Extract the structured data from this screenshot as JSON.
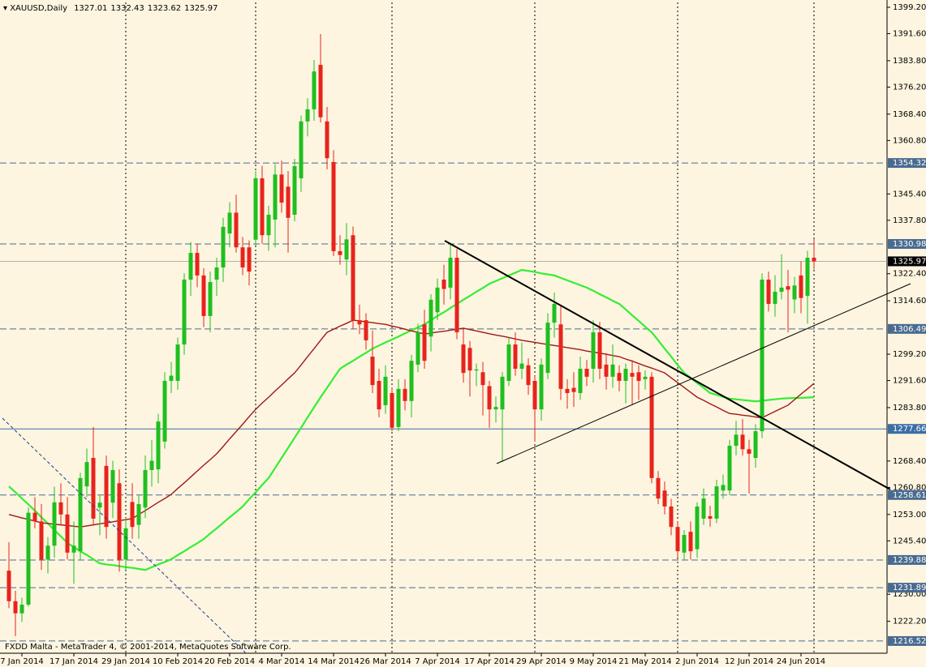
{
  "chart_data": {
    "type": "candlestick",
    "title": "XAUUSD,Daily",
    "footer": "FXDD Malta - MetaTrader 4, © 2001-2014, MetaQuotes Software Corp.",
    "up_color": "#1fbf1f",
    "down_color": "#e8231c",
    "grid": false,
    "ylim": [
      1213.0,
      1400.6
    ],
    "yticks": [
      {
        "value": 1399.2,
        "label": "1399.20"
      },
      {
        "value": 1391.6,
        "label": "1391.60"
      },
      {
        "value": 1383.8,
        "label": "1383.80"
      },
      {
        "value": 1376.2,
        "label": "1376.20"
      },
      {
        "value": 1368.4,
        "label": "1368.40"
      },
      {
        "value": 1360.8,
        "label": "1360.80"
      },
      {
        "value": 1345.4,
        "label": "1345.40"
      },
      {
        "value": 1337.8,
        "label": "1337.80"
      },
      {
        "value": 1322.4,
        "label": "1322.40"
      },
      {
        "value": 1314.6,
        "label": "1314.60"
      },
      {
        "value": 1299.2,
        "label": "1299.20"
      },
      {
        "value": 1291.6,
        "label": "1291.60"
      },
      {
        "value": 1283.8,
        "label": "1283.80"
      },
      {
        "value": 1268.4,
        "label": "1268.40"
      },
      {
        "value": 1260.8,
        "label": "1260.80"
      },
      {
        "value": 1253.0,
        "label": "1253.00"
      },
      {
        "value": 1245.4,
        "label": "1245.40"
      },
      {
        "value": 1230.0,
        "label": "1230.00"
      },
      {
        "value": 1222.2,
        "label": "1222.20"
      }
    ],
    "levels": [
      {
        "value": 1354.32,
        "style": "dashed",
        "color": "#4a6b8f"
      },
      {
        "value": 1330.98,
        "style": "dashed",
        "color": "#4a6b8f"
      },
      {
        "value": 1306.49,
        "style": "dashed",
        "color": "#4a6b8f"
      },
      {
        "value": 1277.66,
        "style": "solid",
        "color": "#3a6ea5"
      },
      {
        "value": 1258.61,
        "style": "dashed",
        "color": "#4a6b8f"
      },
      {
        "value": 1239.88,
        "style": "dashed",
        "color": "#4a6b8f"
      },
      {
        "value": 1231.89,
        "style": "dashed",
        "color": "#4a6b8f"
      },
      {
        "value": 1216.52,
        "style": "dashed",
        "color": "#4a6b8f"
      }
    ],
    "categories": [
      null,
      null,
      "7 Jan 2014",
      null,
      null,
      null,
      null,
      null,
      null,
      null,
      "17 Jan 2014",
      null,
      null,
      null,
      null,
      null,
      null,
      null,
      "29 Jan 2014",
      null,
      null,
      null,
      null,
      null,
      null,
      null,
      "10 Feb 2014",
      null,
      null,
      null,
      null,
      null,
      null,
      null,
      "20 Feb 2014",
      null,
      null,
      null,
      null,
      null,
      null,
      null,
      "4 Mar 2014",
      null,
      null,
      null,
      null,
      null,
      null,
      null,
      "14 Mar 2014",
      null,
      null,
      null,
      null,
      null,
      null,
      null,
      "26 Mar 2014",
      null,
      null,
      null,
      null,
      null,
      null,
      null,
      "7 Apr 2014",
      null,
      null,
      null,
      null,
      null,
      null,
      null,
      "17 Apr 2014",
      null,
      null,
      null,
      null,
      null,
      null,
      null,
      "29 Apr 2014",
      null,
      null,
      null,
      null,
      null,
      null,
      null,
      "9 May 2014",
      null,
      null,
      null,
      null,
      null,
      null,
      null,
      "21 May 2014",
      null,
      null,
      null,
      null,
      null,
      null,
      null,
      "2 Jun 2014",
      null,
      null,
      null,
      null,
      null,
      null,
      null,
      "12 Jun 2014",
      null,
      null,
      null,
      null,
      null,
      null,
      null,
      "24 Jun 2014",
      null,
      null
    ],
    "ohlc": [
      [
        1236.8,
        1245.0,
        1226.0,
        1228.0
      ],
      [
        1228.0,
        1231.0,
        1217.9,
        1224.5
      ],
      [
        1224.5,
        1229.0,
        1222.0,
        1227.0
      ],
      [
        1227.0,
        1255.0,
        1226.5,
        1253.5
      ],
      [
        1253.5,
        1258.0,
        1249.0,
        1251.0
      ],
      [
        1251.0,
        1256.0,
        1237.0,
        1240.0
      ],
      [
        1240.0,
        1246.5,
        1236.0,
        1244.0
      ],
      [
        1244.0,
        1261.0,
        1240.5,
        1256.5
      ],
      [
        1256.5,
        1262.0,
        1250.0,
        1253.0
      ],
      [
        1253.0,
        1258.0,
        1240.0,
        1242.0
      ],
      [
        1242.0,
        1251.0,
        1233.0,
        1244.0
      ],
      [
        1242.4,
        1265.0,
        1240.0,
        1263.5
      ],
      [
        1261.1,
        1272.0,
        1258.0,
        1268.1
      ],
      [
        1269.3,
        1278.2,
        1250.0,
        1251.8
      ],
      [
        1255.0,
        1258.5,
        1247.0,
        1256.4
      ],
      [
        1267.0,
        1270.0,
        1246.0,
        1249.4
      ],
      [
        1256.4,
        1268.5,
        1252.0,
        1265.8
      ],
      [
        1262.0,
        1266.0,
        1236.5,
        1240.0
      ],
      [
        1240.0,
        1252.0,
        1237.0,
        1249.0
      ],
      [
        1256.6,
        1262.0,
        1246.0,
        1249.4
      ],
      [
        1250.0,
        1258.5,
        1246.0,
        1256.0
      ],
      [
        1255.0,
        1270.0,
        1252.0,
        1265.8
      ],
      [
        1265.8,
        1274.5,
        1261.0,
        1268.5
      ],
      [
        1266.0,
        1282.0,
        1262.0,
        1279.8
      ],
      [
        1274.0,
        1294.0,
        1272.0,
        1291.5
      ],
      [
        1291.5,
        1297.0,
        1288.0,
        1293.0
      ],
      [
        1291.5,
        1304.0,
        1289.0,
        1302.0
      ],
      [
        1302.0,
        1322.5,
        1299.0,
        1320.7
      ],
      [
        1320.7,
        1331.5,
        1316.0,
        1328.4
      ],
      [
        1328.4,
        1331.0,
        1318.5,
        1321.9
      ],
      [
        1321.9,
        1324.0,
        1307.0,
        1310.2
      ],
      [
        1310.2,
        1323.0,
        1305.5,
        1320.0
      ],
      [
        1320.7,
        1327.0,
        1316.0,
        1324.2
      ],
      [
        1324.2,
        1338.5,
        1320.0,
        1335.9
      ],
      [
        1334.0,
        1343.0,
        1330.0,
        1340.0
      ],
      [
        1340.0,
        1345.2,
        1328.5,
        1330.0
      ],
      [
        1330.0,
        1333.0,
        1322.0,
        1324.2
      ],
      [
        1330.0,
        1332.0,
        1319.0,
        1323.0
      ],
      [
        1332.2,
        1352.0,
        1330.5,
        1349.9
      ],
      [
        1349.9,
        1353.5,
        1331.0,
        1333.5
      ],
      [
        1333.5,
        1342.0,
        1329.0,
        1339.4
      ],
      [
        1338.0,
        1354.0,
        1330.0,
        1351.0
      ],
      [
        1351.0,
        1355.0,
        1340.0,
        1342.9
      ],
      [
        1347.5,
        1352.0,
        1328.5,
        1338.5
      ],
      [
        1339.4,
        1355.5,
        1337.5,
        1353.4
      ],
      [
        1349.9,
        1368.0,
        1346.0,
        1366.3
      ],
      [
        1366.3,
        1373.0,
        1362.0,
        1369.8
      ],
      [
        1369.8,
        1384.0,
        1366.5,
        1380.7
      ],
      [
        1382.6,
        1391.5,
        1366.0,
        1367.5
      ],
      [
        1366.3,
        1370.5,
        1352.5,
        1355.7
      ],
      [
        1354.6,
        1358.0,
        1327.5,
        1328.9
      ],
      [
        1328.9,
        1333.5,
        1325.0,
        1327.8
      ],
      [
        1326.5,
        1337.0,
        1322.0,
        1332.3
      ],
      [
        1333.5,
        1336.0,
        1306.5,
        1309.0
      ],
      [
        1309.0,
        1313.5,
        1305.0,
        1307.8
      ],
      [
        1309.0,
        1311.0,
        1300.5,
        1303.2
      ],
      [
        1298.5,
        1306.0,
        1288.0,
        1290.3
      ],
      [
        1291.5,
        1295.0,
        1281.0,
        1283.3
      ],
      [
        1284.5,
        1296.0,
        1282.0,
        1292.7
      ],
      [
        1288.0,
        1289.5,
        1277.0,
        1278.0
      ],
      [
        1278.2,
        1292.0,
        1277.0,
        1289.2
      ],
      [
        1289.2,
        1292.0,
        1283.0,
        1285.7
      ],
      [
        1285.7,
        1299.0,
        1281.0,
        1297.3
      ],
      [
        1296.2,
        1308.0,
        1294.0,
        1305.5
      ],
      [
        1307.8,
        1312.0,
        1295.0,
        1297.3
      ],
      [
        1304.3,
        1316.5,
        1300.0,
        1314.9
      ],
      [
        1311.3,
        1321.0,
        1309.0,
        1318.4
      ],
      [
        1320.7,
        1325.0,
        1313.5,
        1318.0
      ],
      [
        1318.4,
        1331.0,
        1315.0,
        1327.0
      ],
      [
        1327.0,
        1329.5,
        1303.5,
        1305.5
      ],
      [
        1302.0,
        1306.5,
        1291.0,
        1293.8
      ],
      [
        1301.0,
        1303.0,
        1287.0,
        1294.5
      ],
      [
        1294.5,
        1296.5,
        1290.0,
        1294.8
      ],
      [
        1294.0,
        1297.0,
        1281.5,
        1290.3
      ],
      [
        1290.0,
        1291.5,
        1278.0,
        1283.3
      ],
      [
        1283.3,
        1287.0,
        1279.5,
        1284.0
      ],
      [
        1283.3,
        1294.0,
        1268.1,
        1292.7
      ],
      [
        1291.5,
        1304.0,
        1290.0,
        1302.0
      ],
      [
        1302.0,
        1305.5,
        1293.0,
        1295.0
      ],
      [
        1295.0,
        1302.5,
        1292.0,
        1296.5
      ],
      [
        1296.0,
        1298.0,
        1287.5,
        1290.3
      ],
      [
        1291.5,
        1293.0,
        1274.0,
        1283.3
      ],
      [
        1283.3,
        1298.0,
        1280.0,
        1296.2
      ],
      [
        1293.8,
        1311.0,
        1292.0,
        1308.3
      ],
      [
        1308.3,
        1317.0,
        1304.0,
        1313.7
      ],
      [
        1307.8,
        1313.0,
        1286.0,
        1289.2
      ],
      [
        1289.2,
        1292.0,
        1283.5,
        1288.0
      ],
      [
        1289.5,
        1294.0,
        1284.0,
        1288.3
      ],
      [
        1288.0,
        1298.5,
        1286.0,
        1295.0
      ],
      [
        1295.0,
        1297.5,
        1290.0,
        1292.7
      ],
      [
        1295.0,
        1309.0,
        1291.0,
        1305.5
      ],
      [
        1305.5,
        1308.5,
        1292.0,
        1295.0
      ],
      [
        1296.2,
        1299.5,
        1289.0,
        1292.7
      ],
      [
        1292.7,
        1302.0,
        1289.5,
        1296.2
      ],
      [
        1293.8,
        1296.0,
        1288.5,
        1291.5
      ],
      [
        1291.5,
        1296.5,
        1285.0,
        1295.0
      ],
      [
        1293.8,
        1297.5,
        1284.5,
        1292.7
      ],
      [
        1294.0,
        1296.0,
        1286.0,
        1291.5
      ],
      [
        1292.0,
        1294.5,
        1289.0,
        1292.7
      ],
      [
        1292.7,
        1294.0,
        1262.0,
        1263.5
      ],
      [
        1263.5,
        1265.5,
        1256.0,
        1257.6
      ],
      [
        1259.9,
        1262.5,
        1253.0,
        1255.3
      ],
      [
        1255.3,
        1257.5,
        1247.0,
        1249.4
      ],
      [
        1249.4,
        1251.0,
        1240.5,
        1242.4
      ],
      [
        1242.0,
        1248.5,
        1240.0,
        1247.1
      ],
      [
        1248.0,
        1251.0,
        1240.0,
        1242.4
      ],
      [
        1243.0,
        1256.5,
        1240.5,
        1255.3
      ],
      [
        1251.8,
        1260.5,
        1250.0,
        1257.6
      ],
      [
        1252.5,
        1255.5,
        1249.5,
        1251.8
      ],
      [
        1251.8,
        1263.0,
        1250.5,
        1261.1
      ],
      [
        1259.9,
        1264.5,
        1257.5,
        1261.5
      ],
      [
        1259.9,
        1274.5,
        1258.6,
        1272.8
      ],
      [
        1272.8,
        1280.0,
        1270.0,
        1276.0
      ],
      [
        1276.0,
        1280.5,
        1270.0,
        1271.8
      ],
      [
        1271.8,
        1274.5,
        1259.0,
        1270.5
      ],
      [
        1269.3,
        1279.0,
        1266.5,
        1277.0
      ],
      [
        1277.0,
        1322.5,
        1275.0,
        1320.7
      ],
      [
        1320.7,
        1323.0,
        1311.5,
        1313.7
      ],
      [
        1313.7,
        1322.0,
        1310.0,
        1317.2
      ],
      [
        1317.2,
        1328.0,
        1315.0,
        1318.4
      ],
      [
        1318.8,
        1323.5,
        1305.5,
        1317.8
      ],
      [
        1315.0,
        1321.5,
        1311.0,
        1319.0
      ],
      [
        1321.9,
        1326.0,
        1311.0,
        1315.4
      ],
      [
        1316.0,
        1329.0,
        1308.0,
        1327.0
      ],
      [
        1327.01,
        1332.43,
        1323.62,
        1325.97
      ]
    ],
    "series": [
      {
        "color": "#33ee33",
        "width": 2.2,
        "values": [
          1261.1,
          1259.4,
          1257.6,
          1255.9,
          1254.1,
          1252.2,
          1250.4,
          1248.5,
          1246.7,
          1244.8,
          1243.6,
          1242.4,
          1241.3,
          1240.1,
          1238.9,
          1238.6,
          1238.4,
          1238.1,
          1237.8,
          1237.6,
          1237.3,
          1237.0,
          1237.8,
          1238.6,
          1239.3,
          1240.1,
          1241.3,
          1242.4,
          1243.6,
          1244.7,
          1245.9,
          1247.5,
          1249.0,
          1250.6,
          1252.2,
          1253.7,
          1255.3,
          1257.4,
          1259.4,
          1261.5,
          1263.5,
          1266.4,
          1269.3,
          1272.2,
          1275.1,
          1278.0,
          1281.0,
          1283.9,
          1286.8,
          1289.5,
          1292.3,
          1295.0,
          1296.2,
          1297.3,
          1298.5,
          1299.6,
          1300.8,
          1301.7,
          1302.6,
          1303.4,
          1304.3,
          1305.2,
          1306.1,
          1306.9,
          1307.8,
          1309.0,
          1310.2,
          1311.3,
          1312.5,
          1313.7,
          1314.9,
          1316.0,
          1317.2,
          1318.3,
          1319.5,
          1320.3,
          1321.1,
          1321.9,
          1322.7,
          1323.5,
          1323.2,
          1322.9,
          1322.5,
          1322.2,
          1321.9,
          1321.2,
          1320.5,
          1319.8,
          1319.1,
          1318.4,
          1317.5,
          1316.5,
          1315.6,
          1314.6,
          1313.7,
          1312.1,
          1310.4,
          1308.8,
          1307.1,
          1305.5,
          1303.2,
          1300.8,
          1298.5,
          1296.1,
          1293.8,
          1292.4,
          1290.9,
          1289.5,
          1288.0,
          1287.5,
          1286.9,
          1286.4,
          1286.2,
          1286.0,
          1285.8,
          1285.6,
          1285.8,
          1286.0,
          1286.2,
          1286.4,
          1286.5,
          1286.6,
          1286.6,
          1286.7,
          1286.8
        ]
      },
      {
        "color": "#a01818",
        "width": 1.4,
        "values": [
          1253.0,
          1252.5,
          1252.0,
          1251.6,
          1251.1,
          1250.6,
          1250.4,
          1250.2,
          1250.0,
          1249.8,
          1249.6,
          1249.4,
          1249.7,
          1250.0,
          1250.3,
          1250.6,
          1250.9,
          1251.2,
          1251.5,
          1251.8,
          1253.0,
          1254.1,
          1255.3,
          1256.5,
          1257.6,
          1258.8,
          1260.5,
          1262.1,
          1263.8,
          1265.5,
          1267.2,
          1268.8,
          1270.5,
          1272.6,
          1274.8,
          1276.9,
          1279.0,
          1281.2,
          1283.3,
          1285.1,
          1286.8,
          1288.6,
          1290.3,
          1292.1,
          1293.8,
          1296.1,
          1298.5,
          1300.8,
          1303.2,
          1305.5,
          1306.4,
          1307.3,
          1308.1,
          1309.0,
          1308.8,
          1308.5,
          1308.3,
          1308.0,
          1307.8,
          1307.3,
          1306.9,
          1306.4,
          1305.9,
          1305.5,
          1305.0,
          1305.3,
          1305.6,
          1305.8,
          1306.1,
          1306.4,
          1306.7,
          1306.3,
          1305.9,
          1305.5,
          1305.1,
          1304.7,
          1304.4,
          1304.0,
          1303.6,
          1303.2,
          1302.9,
          1302.6,
          1302.3,
          1302.0,
          1301.7,
          1301.4,
          1301.1,
          1300.8,
          1300.5,
          1300.1,
          1299.8,
          1299.5,
          1299.2,
          1298.8,
          1298.5,
          1297.8,
          1297.2,
          1296.5,
          1295.8,
          1295.2,
          1294.5,
          1293.8,
          1292.4,
          1291.0,
          1289.6,
          1288.2,
          1286.8,
          1285.9,
          1284.9,
          1284.0,
          1283.0,
          1282.1,
          1281.9,
          1281.6,
          1281.4,
          1281.1,
          1280.9,
          1281.8,
          1282.7,
          1283.6,
          1284.5,
          1286.1,
          1287.7,
          1289.2,
          1290.8
        ]
      }
    ]
  }
}
